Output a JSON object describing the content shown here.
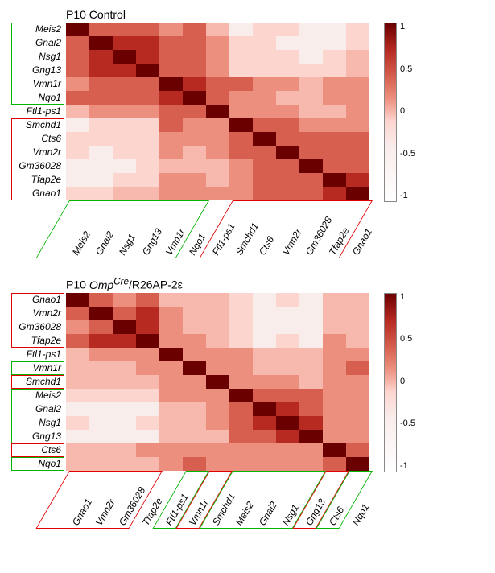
{
  "colormap": {
    "neg": "#f9edec",
    "zero": "#fdd5cf",
    "low": "#f7b8ad",
    "mid": "#ec8f7e",
    "high": "#d65f4f",
    "vhigh": "#b62a22",
    "max": "#6b0000"
  },
  "colorbar_ticks": [
    "1",
    "0.5",
    "0",
    "-0.5",
    "-1"
  ],
  "panels": [
    {
      "title": "P10 Control",
      "genes": [
        "Meis2",
        "Gnai2",
        "Nsg1",
        "Gng13",
        "Vmn1r",
        "Nqo1",
        "Ftl1-ps1",
        "Smchd1",
        "Cts6",
        "Vmn2r",
        "Gm36028",
        "Tfap2e",
        "Gnao1"
      ],
      "groups_y": [
        {
          "from": 0,
          "to": 5,
          "color": "green"
        },
        {
          "from": 7,
          "to": 12,
          "color": "red"
        }
      ],
      "groups_x": [
        {
          "from": 0,
          "to": 5,
          "color": "green"
        },
        {
          "from": 7,
          "to": 12,
          "color": "red"
        }
      ],
      "matrix": [
        [
          1.0,
          0.72,
          0.66,
          0.6,
          0.45,
          0.55,
          0.3,
          -0.02,
          0.02,
          0.0,
          -0.05,
          -0.05,
          0.1
        ],
        [
          0.72,
          1.0,
          0.78,
          0.8,
          0.55,
          0.62,
          0.42,
          0.05,
          0.02,
          -0.02,
          -0.05,
          -0.02,
          0.12
        ],
        [
          0.66,
          0.78,
          1.0,
          0.82,
          0.6,
          0.65,
          0.45,
          0.08,
          0.05,
          0.0,
          -0.02,
          0.0,
          0.15
        ],
        [
          0.6,
          0.8,
          0.82,
          1.0,
          0.7,
          0.7,
          0.45,
          0.1,
          0.05,
          0.02,
          0.0,
          0.02,
          0.18
        ],
        [
          0.45,
          0.55,
          0.6,
          0.7,
          1.0,
          0.92,
          0.7,
          0.55,
          0.4,
          0.4,
          0.3,
          0.4,
          0.45
        ],
        [
          0.55,
          0.62,
          0.65,
          0.7,
          0.92,
          1.0,
          0.7,
          0.45,
          0.35,
          0.3,
          0.25,
          0.35,
          0.4
        ],
        [
          0.3,
          0.42,
          0.45,
          0.45,
          0.7,
          0.7,
          1.0,
          0.5,
          0.35,
          0.35,
          0.25,
          0.3,
          0.4
        ],
        [
          -0.02,
          0.05,
          0.08,
          0.1,
          0.55,
          0.45,
          0.5,
          1.0,
          0.55,
          0.55,
          0.4,
          0.5,
          0.5
        ],
        [
          0.02,
          0.02,
          0.05,
          0.05,
          0.4,
          0.35,
          0.35,
          0.55,
          1.0,
          0.65,
          0.55,
          0.6,
          0.55
        ],
        [
          0.0,
          -0.02,
          0.0,
          0.02,
          0.4,
          0.3,
          0.35,
          0.55,
          0.65,
          1.0,
          0.62,
          0.65,
          0.6
        ],
        [
          -0.05,
          -0.05,
          -0.02,
          0.0,
          0.3,
          0.25,
          0.25,
          0.4,
          0.55,
          0.62,
          1.0,
          0.72,
          0.68
        ],
        [
          -0.05,
          -0.02,
          0.0,
          0.02,
          0.4,
          0.35,
          0.3,
          0.5,
          0.6,
          0.65,
          0.72,
          1.0,
          0.8
        ],
        [
          0.1,
          0.12,
          0.15,
          0.18,
          0.45,
          0.4,
          0.4,
          0.5,
          0.55,
          0.6,
          0.68,
          0.8,
          1.0
        ]
      ]
    },
    {
      "title_html": "P10 <i>Omp<sup>Cre</sup></i>/R26AP-2ε",
      "genes": [
        "Gnao1",
        "Vmn2r",
        "Gm36028",
        "Tfap2e",
        "Ftl1-ps1",
        "Vmn1r",
        "Smchd1",
        "Meis2",
        "Gnai2",
        "Nsg1",
        "Gng13",
        "Cts6",
        "Nqo1"
      ],
      "groups_y": [
        {
          "from": 0,
          "to": 3,
          "color": "red"
        },
        {
          "from": 5,
          "to": 5,
          "color": "green"
        },
        {
          "from": 6,
          "to": 6,
          "color": "red"
        },
        {
          "from": 7,
          "to": 10,
          "color": "green"
        },
        {
          "from": 11,
          "to": 11,
          "color": "red"
        },
        {
          "from": 12,
          "to": 12,
          "color": "green"
        }
      ],
      "groups_x": [
        {
          "from": 0,
          "to": 3,
          "color": "red"
        },
        {
          "from": 5,
          "to": 5,
          "color": "green"
        },
        {
          "from": 6,
          "to": 6,
          "color": "red"
        },
        {
          "from": 7,
          "to": 10,
          "color": "green"
        },
        {
          "from": 11,
          "to": 11,
          "color": "red"
        },
        {
          "from": 12,
          "to": 12,
          "color": "green"
        }
      ],
      "matrix": [
        [
          1.0,
          0.68,
          0.45,
          0.72,
          0.3,
          0.3,
          0.2,
          0.05,
          -0.02,
          0.0,
          -0.02,
          0.25,
          0.2
        ],
        [
          0.68,
          1.0,
          0.6,
          0.78,
          0.35,
          0.3,
          0.25,
          0.02,
          -0.05,
          -0.02,
          -0.02,
          0.3,
          0.22
        ],
        [
          0.45,
          0.6,
          1.0,
          0.8,
          0.38,
          0.28,
          0.28,
          0.0,
          -0.05,
          -0.05,
          -0.05,
          0.32,
          0.2
        ],
        [
          0.72,
          0.78,
          0.8,
          1.0,
          0.4,
          0.35,
          0.3,
          0.05,
          -0.02,
          0.0,
          -0.02,
          0.35,
          0.25
        ],
        [
          0.3,
          0.35,
          0.38,
          0.4,
          1.0,
          0.52,
          0.48,
          0.35,
          0.3,
          0.32,
          0.3,
          0.45,
          0.45
        ],
        [
          0.3,
          0.3,
          0.28,
          0.35,
          0.52,
          1.0,
          0.5,
          0.35,
          0.3,
          0.3,
          0.28,
          0.4,
          0.55
        ],
        [
          0.2,
          0.25,
          0.28,
          0.3,
          0.48,
          0.5,
          1.0,
          0.4,
          0.35,
          0.35,
          0.32,
          0.45,
          0.45
        ],
        [
          0.05,
          0.02,
          0.0,
          0.05,
          0.35,
          0.35,
          0.4,
          1.0,
          0.68,
          0.65,
          0.62,
          0.45,
          0.4
        ],
        [
          -0.02,
          -0.05,
          -0.05,
          -0.02,
          0.3,
          0.3,
          0.35,
          0.68,
          1.0,
          0.75,
          0.72,
          0.42,
          0.35
        ],
        [
          0.0,
          -0.02,
          -0.05,
          0.0,
          0.32,
          0.3,
          0.35,
          0.65,
          0.75,
          1.0,
          0.8,
          0.45,
          0.38
        ],
        [
          -0.02,
          -0.02,
          -0.05,
          -0.02,
          0.3,
          0.28,
          0.32,
          0.62,
          0.72,
          0.8,
          1.0,
          0.45,
          0.38
        ],
        [
          0.25,
          0.3,
          0.32,
          0.35,
          0.45,
          0.4,
          0.45,
          0.45,
          0.42,
          0.45,
          0.45,
          1.0,
          0.58
        ],
        [
          0.2,
          0.22,
          0.2,
          0.25,
          0.45,
          0.55,
          0.45,
          0.4,
          0.35,
          0.38,
          0.38,
          0.58,
          1.0
        ]
      ]
    }
  ],
  "cell_size": {
    "w": 29,
    "h": 17
  }
}
